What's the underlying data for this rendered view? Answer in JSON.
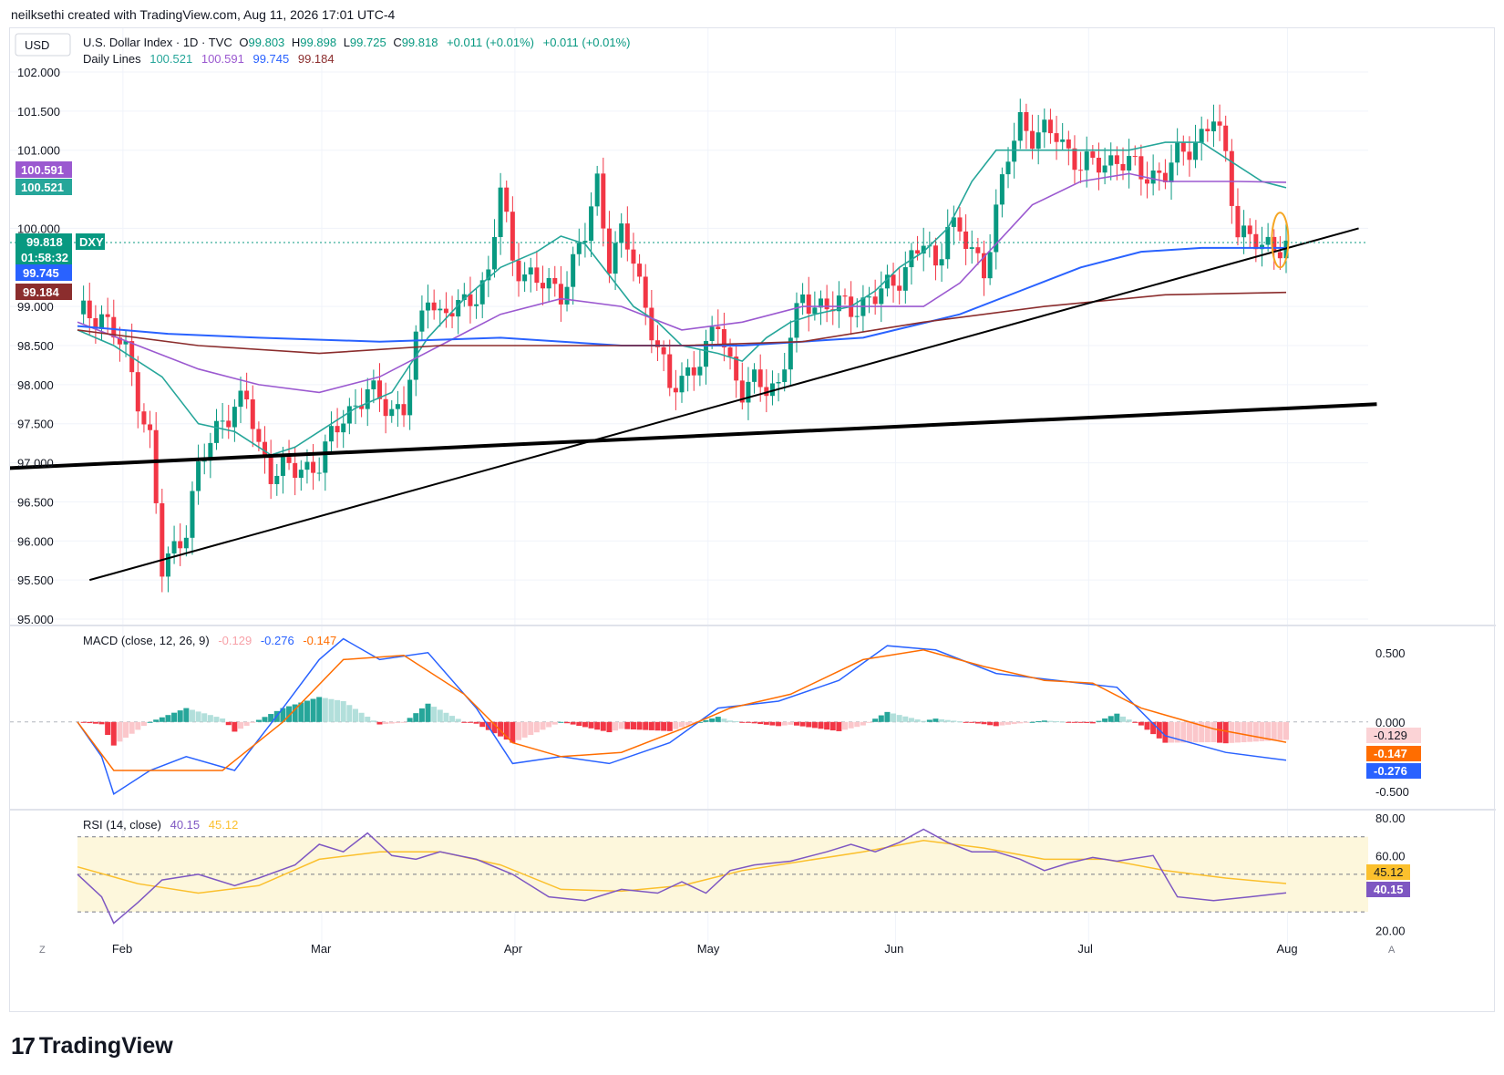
{
  "header": {
    "credit": "neilksethi created with TradingView.com, Aug 11, 2026 17:01 UTC-4"
  },
  "footer": {
    "logo_mark": "17",
    "logo_text": "TradingView"
  },
  "toolbar": {
    "currency": "USD",
    "scale_mode_left": "Z",
    "scale_mode_right": "A"
  },
  "legend": {
    "symbol": "U.S. Dollar Index · 1D · TVC",
    "open_label": "O",
    "open": "99.803",
    "high_label": "H",
    "high": "99.898",
    "low_label": "L",
    "low": "99.725",
    "close_label": "C",
    "close": "99.818",
    "change": "+0.011 (+0.01%)",
    "change2": "+0.011 (+0.01%)",
    "lines_label": "Daily Lines",
    "ma_values": [
      "100.521",
      "100.591",
      "99.745",
      "99.184"
    ]
  },
  "macd_legend": {
    "label": "MACD (close, 12, 26, 9)",
    "hist": "-0.129",
    "macd": "-0.276",
    "signal": "-0.147"
  },
  "rsi_legend": {
    "label": "RSI (14, close)",
    "rsi": "40.15",
    "ma": "45.12"
  },
  "price_badges": {
    "ma20": "100.591",
    "ma10": "100.521",
    "last": "99.818",
    "countdown": "01:58:32",
    "ticker": "DXY",
    "ma50": "99.745",
    "ma200": "99.184"
  },
  "macd_badges": [
    "-0.129",
    "-0.147",
    "-0.276"
  ],
  "rsi_badges": [
    "45.12",
    "40.15"
  ],
  "colors": {
    "up": "#089981",
    "down": "#f23645",
    "ma10": "#26a69a",
    "ma20": "#9b59d0",
    "ma50": "#2962ff",
    "ma200": "#8b2d2d",
    "macd": "#2962ff",
    "signal": "#ff6d00",
    "rsi": "#7e57c2",
    "rsi_ma": "#fbc02d",
    "highlight": "#f5a623"
  },
  "chart_data": [
    {
      "type": "candlestick",
      "title": "U.S. Dollar Index · 1D · TVC",
      "ylim": [
        95.0,
        102.3
      ],
      "yticks": [
        "102.000",
        "101.500",
        "101.000",
        "100.000",
        "99.000",
        "98.500",
        "98.000",
        "97.500",
        "97.000",
        "96.500",
        "96.000",
        "95.500",
        "95.000"
      ],
      "xticks": [
        "Feb",
        "Mar",
        "Apr",
        "May",
        "Jun",
        "Jul",
        "Aug"
      ],
      "x_start": "2026-01-13",
      "close_path": [
        [
          0,
          98.9
        ],
        [
          4,
          98.9
        ],
        [
          8,
          98.4
        ],
        [
          12,
          97.3
        ],
        [
          14,
          95.6
        ],
        [
          16,
          95.9
        ],
        [
          18,
          96.2
        ],
        [
          20,
          96.9
        ],
        [
          24,
          97.6
        ],
        [
          28,
          97.8
        ],
        [
          30,
          97.2
        ],
        [
          32,
          96.9
        ],
        [
          36,
          96.9
        ],
        [
          40,
          97.0
        ],
        [
          44,
          97.6
        ],
        [
          48,
          97.9
        ],
        [
          52,
          97.7
        ],
        [
          54,
          97.7
        ],
        [
          56,
          98.5
        ],
        [
          58,
          99.2
        ],
        [
          60,
          98.9
        ],
        [
          64,
          99.0
        ],
        [
          68,
          99.4
        ],
        [
          70,
          100.5
        ],
        [
          72,
          99.6
        ],
        [
          76,
          99.3
        ],
        [
          80,
          99.2
        ],
        [
          84,
          99.9
        ],
        [
          86,
          100.6
        ],
        [
          88,
          99.6
        ],
        [
          90,
          99.9
        ],
        [
          92,
          99.6
        ],
        [
          94,
          99.0
        ],
        [
          96,
          98.5
        ],
        [
          98,
          97.9
        ],
        [
          100,
          98.1
        ],
        [
          104,
          98.4
        ],
        [
          106,
          98.8
        ],
        [
          108,
          98.3
        ],
        [
          110,
          97.9
        ],
        [
          112,
          98.0
        ],
        [
          116,
          98.0
        ],
        [
          118,
          98.6
        ],
        [
          120,
          99.1
        ],
        [
          124,
          99.0
        ],
        [
          128,
          99.0
        ],
        [
          132,
          99.1
        ],
        [
          136,
          99.4
        ],
        [
          140,
          99.8
        ],
        [
          142,
          99.5
        ],
        [
          144,
          100.1
        ],
        [
          146,
          99.9
        ],
        [
          150,
          99.5
        ],
        [
          152,
          100.2
        ],
        [
          154,
          100.9
        ],
        [
          156,
          101.4
        ],
        [
          158,
          101.2
        ],
        [
          162,
          101.2
        ],
        [
          166,
          100.8
        ],
        [
          168,
          100.8
        ],
        [
          172,
          100.9
        ],
        [
          176,
          100.7
        ],
        [
          180,
          100.7
        ],
        [
          182,
          100.9
        ],
        [
          186,
          101.2
        ],
        [
          188,
          101.4
        ],
        [
          190,
          100.9
        ],
        [
          192,
          100.0
        ],
        [
          194,
          99.9
        ],
        [
          196,
          99.7
        ],
        [
          198,
          99.8
        ]
      ],
      "moving_averages": {
        "ma10": [
          [
            0,
            98.7
          ],
          [
            6,
            98.5
          ],
          [
            14,
            98.1
          ],
          [
            20,
            97.5
          ],
          [
            26,
            97.4
          ],
          [
            32,
            97.1
          ],
          [
            36,
            97.2
          ],
          [
            40,
            97.4
          ],
          [
            46,
            97.7
          ],
          [
            52,
            97.9
          ],
          [
            58,
            98.6
          ],
          [
            64,
            99.1
          ],
          [
            70,
            99.5
          ],
          [
            76,
            99.7
          ],
          [
            80,
            99.9
          ],
          [
            84,
            99.8
          ],
          [
            88,
            99.4
          ],
          [
            92,
            99.0
          ],
          [
            96,
            98.8
          ],
          [
            100,
            98.5
          ],
          [
            106,
            98.4
          ],
          [
            110,
            98.3
          ],
          [
            114,
            98.6
          ],
          [
            118,
            98.8
          ],
          [
            122,
            98.9
          ],
          [
            128,
            99.0
          ],
          [
            132,
            99.2
          ],
          [
            136,
            99.5
          ],
          [
            140,
            99.7
          ],
          [
            144,
            100.0
          ],
          [
            148,
            100.6
          ],
          [
            152,
            101.0
          ],
          [
            156,
            101.0
          ],
          [
            162,
            101.0
          ],
          [
            168,
            101.0
          ],
          [
            174,
            101.0
          ],
          [
            180,
            101.1
          ],
          [
            186,
            101.1
          ],
          [
            190,
            100.9
          ],
          [
            196,
            100.6
          ],
          [
            200,
            100.52
          ]
        ],
        "ma20": [
          [
            0,
            98.8
          ],
          [
            10,
            98.5
          ],
          [
            20,
            98.2
          ],
          [
            30,
            98.0
          ],
          [
            40,
            97.9
          ],
          [
            50,
            98.1
          ],
          [
            60,
            98.5
          ],
          [
            70,
            98.9
          ],
          [
            80,
            99.1
          ],
          [
            90,
            99.0
          ],
          [
            100,
            98.7
          ],
          [
            110,
            98.8
          ],
          [
            120,
            99.0
          ],
          [
            130,
            99.0
          ],
          [
            140,
            99.0
          ],
          [
            146,
            99.3
          ],
          [
            152,
            99.8
          ],
          [
            158,
            100.3
          ],
          [
            166,
            100.6
          ],
          [
            174,
            100.7
          ],
          [
            180,
            100.6
          ],
          [
            186,
            100.6
          ],
          [
            192,
            100.6
          ],
          [
            200,
            100.59
          ]
        ],
        "ma50": [
          [
            0,
            98.75
          ],
          [
            15,
            98.65
          ],
          [
            30,
            98.6
          ],
          [
            50,
            98.55
          ],
          [
            70,
            98.6
          ],
          [
            90,
            98.5
          ],
          [
            110,
            98.5
          ],
          [
            130,
            98.6
          ],
          [
            146,
            98.9
          ],
          [
            156,
            99.2
          ],
          [
            166,
            99.5
          ],
          [
            176,
            99.7
          ],
          [
            186,
            99.75
          ],
          [
            200,
            99.75
          ]
        ],
        "ma200": [
          [
            0,
            98.7
          ],
          [
            20,
            98.5
          ],
          [
            40,
            98.4
          ],
          [
            60,
            98.5
          ],
          [
            80,
            98.5
          ],
          [
            100,
            98.5
          ],
          [
            120,
            98.55
          ],
          [
            140,
            98.8
          ],
          [
            160,
            99.0
          ],
          [
            180,
            99.15
          ],
          [
            200,
            99.18
          ]
        ]
      },
      "trendlines": [
        [
          [
            2,
            95.5
          ],
          [
            212,
            100.0
          ]
        ],
        [
          [
            -20,
            96.9
          ],
          [
            215,
            97.75
          ]
        ]
      ],
      "last_price": 99.818
    },
    {
      "type": "bar",
      "title": "MACD (close, 12, 26, 9)",
      "ylim": [
        -0.6,
        0.65
      ],
      "yticks": [
        "0.500",
        "0.000",
        "-0.500"
      ],
      "macd_path": [
        [
          0,
          0.0
        ],
        [
          4,
          -0.25
        ],
        [
          6,
          -0.52
        ],
        [
          12,
          -0.35
        ],
        [
          18,
          -0.25
        ],
        [
          26,
          -0.35
        ],
        [
          34,
          0.1
        ],
        [
          40,
          0.45
        ],
        [
          44,
          0.6
        ],
        [
          50,
          0.45
        ],
        [
          58,
          0.5
        ],
        [
          66,
          0.1
        ],
        [
          72,
          -0.3
        ],
        [
          80,
          -0.25
        ],
        [
          88,
          -0.3
        ],
        [
          98,
          -0.15
        ],
        [
          106,
          0.1
        ],
        [
          116,
          0.15
        ],
        [
          126,
          0.3
        ],
        [
          134,
          0.55
        ],
        [
          142,
          0.52
        ],
        [
          152,
          0.35
        ],
        [
          162,
          0.3
        ],
        [
          172,
          0.25
        ],
        [
          180,
          -0.1
        ],
        [
          190,
          -0.22
        ],
        [
          200,
          -0.276
        ]
      ],
      "signal_path": [
        [
          0,
          0.0
        ],
        [
          6,
          -0.35
        ],
        [
          14,
          -0.35
        ],
        [
          24,
          -0.35
        ],
        [
          34,
          0.0
        ],
        [
          44,
          0.45
        ],
        [
          54,
          0.48
        ],
        [
          64,
          0.2
        ],
        [
          72,
          -0.15
        ],
        [
          80,
          -0.25
        ],
        [
          90,
          -0.22
        ],
        [
          100,
          -0.05
        ],
        [
          108,
          0.1
        ],
        [
          118,
          0.2
        ],
        [
          130,
          0.45
        ],
        [
          140,
          0.52
        ],
        [
          150,
          0.4
        ],
        [
          160,
          0.3
        ],
        [
          168,
          0.28
        ],
        [
          176,
          0.1
        ],
        [
          188,
          -0.05
        ],
        [
          200,
          -0.147
        ]
      ],
      "histogram_last": -0.129
    },
    {
      "type": "line",
      "title": "RSI (14, close)",
      "ylim": [
        15,
        82
      ],
      "yticks": [
        "80.00",
        "60.00",
        "20.00"
      ],
      "bands": [
        30,
        50,
        70
      ],
      "rsi_path": [
        [
          0,
          50
        ],
        [
          4,
          38
        ],
        [
          6,
          24
        ],
        [
          10,
          35
        ],
        [
          14,
          47
        ],
        [
          20,
          50
        ],
        [
          26,
          44
        ],
        [
          30,
          48
        ],
        [
          36,
          55
        ],
        [
          40,
          66
        ],
        [
          44,
          62
        ],
        [
          48,
          72
        ],
        [
          52,
          60
        ],
        [
          56,
          58
        ],
        [
          60,
          62
        ],
        [
          66,
          58
        ],
        [
          72,
          50
        ],
        [
          78,
          38
        ],
        [
          84,
          36
        ],
        [
          90,
          42
        ],
        [
          96,
          40
        ],
        [
          100,
          46
        ],
        [
          104,
          40
        ],
        [
          108,
          52
        ],
        [
          112,
          55
        ],
        [
          118,
          57
        ],
        [
          124,
          62
        ],
        [
          128,
          66
        ],
        [
          132,
          62
        ],
        [
          136,
          67
        ],
        [
          140,
          74
        ],
        [
          144,
          67
        ],
        [
          148,
          62
        ],
        [
          152,
          62
        ],
        [
          156,
          58
        ],
        [
          160,
          52
        ],
        [
          164,
          56
        ],
        [
          168,
          59
        ],
        [
          172,
          57
        ],
        [
          178,
          60
        ],
        [
          182,
          38
        ],
        [
          188,
          36
        ],
        [
          194,
          38
        ],
        [
          200,
          40.15
        ]
      ],
      "rsi_ma_path": [
        [
          0,
          54
        ],
        [
          10,
          45
        ],
        [
          20,
          40
        ],
        [
          30,
          44
        ],
        [
          40,
          58
        ],
        [
          50,
          62
        ],
        [
          60,
          62
        ],
        [
          70,
          55
        ],
        [
          80,
          42
        ],
        [
          90,
          41
        ],
        [
          100,
          44
        ],
        [
          110,
          52
        ],
        [
          120,
          57
        ],
        [
          130,
          62
        ],
        [
          140,
          68
        ],
        [
          150,
          64
        ],
        [
          160,
          58
        ],
        [
          170,
          58
        ],
        [
          180,
          52
        ],
        [
          190,
          48
        ],
        [
          200,
          45.12
        ]
      ]
    }
  ]
}
